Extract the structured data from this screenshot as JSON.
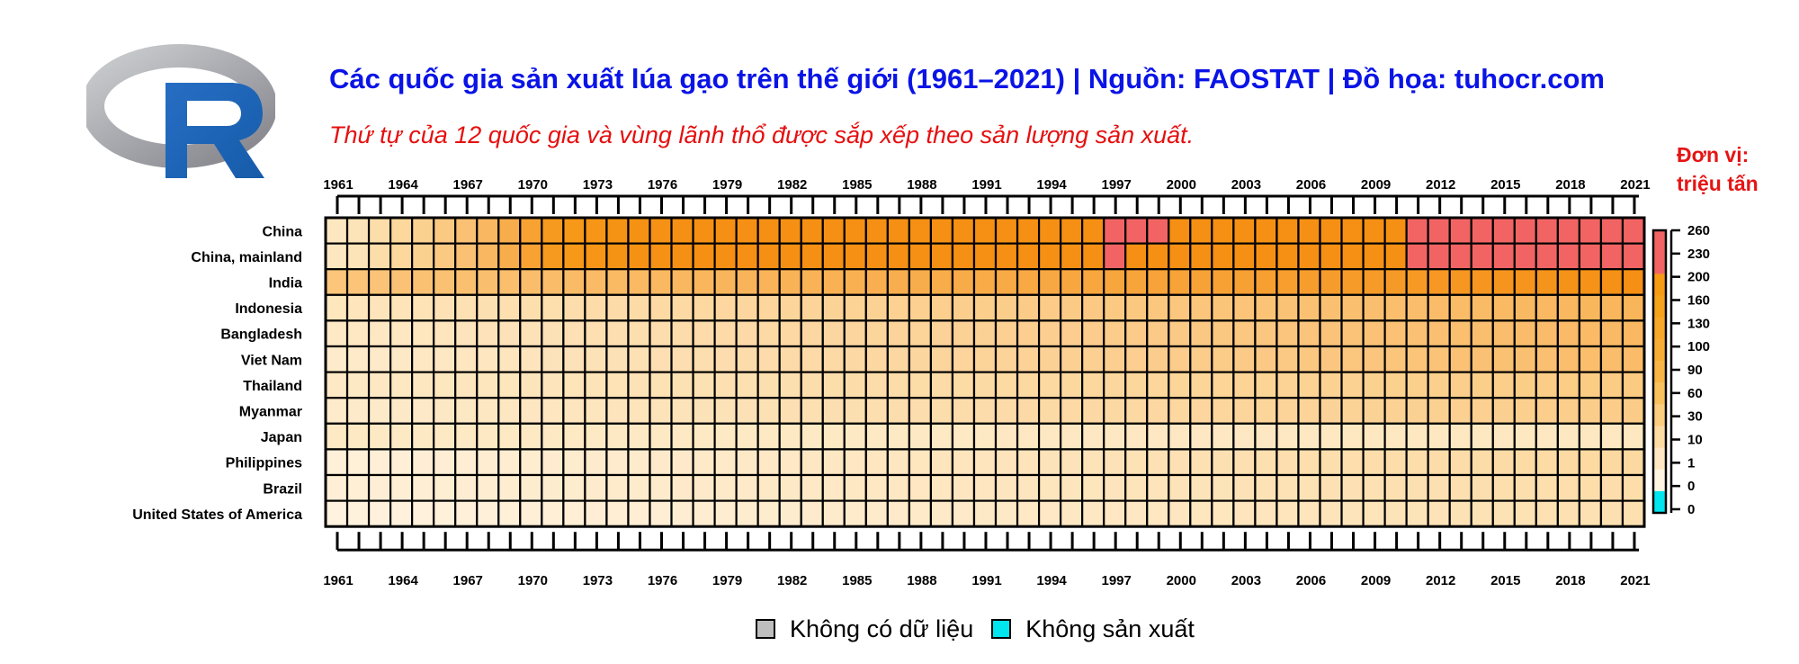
{
  "title": "Các quốc gia sản xuất lúa gạo trên thế giới (1961–2021) | Nguồn: FAOSTAT | Đồ họa: tuhocr.com",
  "subtitle": "Thứ tự của 12 quốc gia và vùng lãnh thổ được sắp xếp theo sản lượng sản xuất.",
  "unit_line1": "Đơn vị:",
  "unit_line2": "triệu tấn",
  "logo_letter": "R",
  "legend": [
    {
      "label": "Không có dữ liệu",
      "color": "#bebebe"
    },
    {
      "label": "Không sản xuất",
      "color": "#00e5ee"
    }
  ],
  "chart_data": {
    "type": "heatmap",
    "x_labels": [
      "1961",
      "1964",
      "1967",
      "1970",
      "1973",
      "1976",
      "1979",
      "1982",
      "1985",
      "1988",
      "1991",
      "1994",
      "1997",
      "2000",
      "2003",
      "2006",
      "2009",
      "2012",
      "2015",
      "2018",
      "2021"
    ],
    "years": [
      1961,
      2021
    ],
    "rows": [
      "China",
      "China, mainland",
      "India",
      "Indonesia",
      "Bangladesh",
      "Viet Nam",
      "Thailand",
      "Myanmar",
      "Japan",
      "Philippines",
      "Brazil",
      "United States of America"
    ],
    "colorbar": {
      "labels": [
        "260",
        "230",
        "200",
        "160",
        "130",
        "100",
        "90",
        "60",
        "30",
        "10",
        "1",
        "0",
        "0"
      ],
      "colors": [
        "#f26464",
        "#f26464",
        "#f59b14",
        "#f5a21c",
        "#f7a829",
        "#f7ad35",
        "#f8b545",
        "#f9c05e",
        "#fbcd7e",
        "#fcdca3",
        "#fee7c2",
        "#fff5e2",
        "#00e5ee"
      ]
    },
    "unit": "triệu tấn",
    "values": {
      "China": [
        "#fde7c1",
        "#fde3b8",
        "#fdddaa",
        "#fcd89c",
        "#fbd190",
        "#fbc982",
        "#fac073",
        "#f9b762",
        "#f8ad4c",
        "#f7a232",
        "#f69a1f",
        "#f69818",
        "#f69516",
        "#f59314",
        "#f59214",
        "#f59114",
        "#f59014",
        "#f59014",
        "#f59014",
        "#f59014",
        "#f59014",
        "#f59014",
        "#f59014",
        "#f59014",
        "#f59014",
        "#f59014",
        "#f59014",
        "#f59014",
        "#f59014",
        "#f59014",
        "#f59014",
        "#f59014",
        "#f59014",
        "#f59014",
        "#f59014",
        "#f59014",
        "#f26464",
        "#f26464",
        "#f26464",
        "#f59014",
        "#f59014",
        "#f59014",
        "#f59014",
        "#f59014",
        "#f59014",
        "#f59014",
        "#f59014",
        "#f59014",
        "#f59014",
        "#f59014",
        "#f26464",
        "#f26464",
        "#f26464",
        "#f26464",
        "#f26464",
        "#f26464",
        "#f26464",
        "#f26464",
        "#f26464",
        "#f26464",
        "#f26464"
      ],
      "China, mainland": [
        "#fde7c1",
        "#fde3b8",
        "#fdddaa",
        "#fcd89c",
        "#fbd190",
        "#fbc982",
        "#fac073",
        "#f9b762",
        "#f8ad4c",
        "#f7a232",
        "#f69a1f",
        "#f69818",
        "#f69516",
        "#f59314",
        "#f59214",
        "#f59114",
        "#f59014",
        "#f59014",
        "#f59014",
        "#f59014",
        "#f59014",
        "#f59014",
        "#f59014",
        "#f59014",
        "#f59014",
        "#f59014",
        "#f59014",
        "#f59014",
        "#f59014",
        "#f59014",
        "#f59014",
        "#f59014",
        "#f59014",
        "#f59014",
        "#f59014",
        "#f59014",
        "#f26464",
        "#f59014",
        "#f59014",
        "#f59014",
        "#f59014",
        "#f59014",
        "#f59014",
        "#f59014",
        "#f59014",
        "#f59014",
        "#f59014",
        "#f59014",
        "#f59014",
        "#f59014",
        "#f26464",
        "#f26464",
        "#f26464",
        "#f26464",
        "#f26464",
        "#f26464",
        "#f26464",
        "#f26464",
        "#f26464",
        "#f26464",
        "#f26464"
      ],
      "India": "gradient:#fbc57a:#f59014",
      "Indonesia": "gradient:#fee6bd:#f9b55a",
      "Bangladesh": "gradient:#fee9c6:#fab863",
      "Viet Nam": "gradient:#feebcb:#fabc69",
      "Thailand": "gradient:#fde9c5:#fbcb82",
      "Myanmar": "gradient:#fdebcb:#fbcc88",
      "Japan": "gradient:#fde9c4:#fde8c2",
      "Philippines": "gradient:#fff0d9:#fcd9a0",
      "Brazil": "gradient:#feefd6:#fdddaa",
      "United States of America": "gradient:#fff2de:#fde0b0"
    }
  }
}
